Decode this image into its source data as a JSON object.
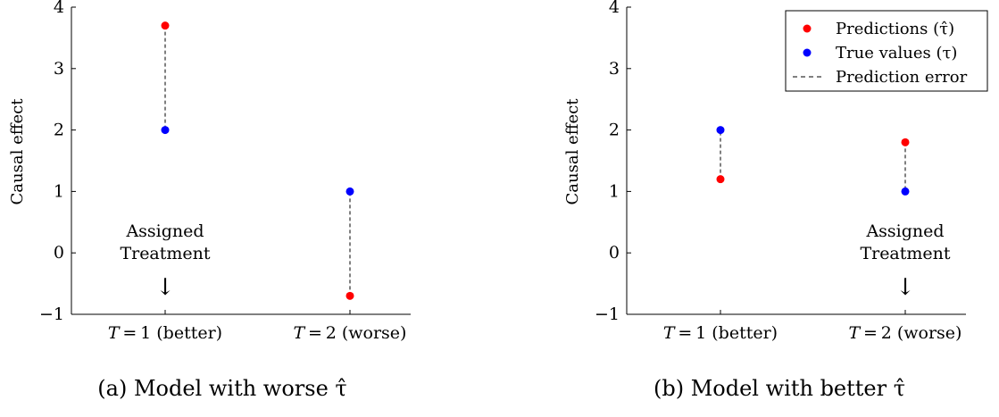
{
  "chart_data": [
    {
      "type": "scatter",
      "categories": [
        "T = 1 (better)",
        "T = 2 (worse)"
      ],
      "series": [
        {
          "name": "Predictions (τ̂)",
          "values": [
            3.7,
            -0.7
          ],
          "color": "#ff0000"
        },
        {
          "name": "True values (τ)",
          "values": [
            2,
            1
          ],
          "color": "#0000ff"
        }
      ],
      "error_series_name": "Prediction error",
      "ylabel": "Causal effect",
      "ylim": [
        -1,
        4
      ],
      "yticks": [
        -1,
        0,
        1,
        2,
        3,
        4
      ],
      "ytick_labels": [
        "−1",
        "0",
        "1",
        "2",
        "3",
        "4"
      ],
      "annotation": {
        "lines": [
          "Assigned",
          "Treatment"
        ],
        "arrow": "↓",
        "category": "T = 1 (better)"
      },
      "caption": "(a) Model with worse τ̂",
      "legend": false
    },
    {
      "type": "scatter",
      "categories": [
        "T = 1 (better)",
        "T = 2 (worse)"
      ],
      "series": [
        {
          "name": "Predictions (τ̂)",
          "values": [
            1.2,
            1.8
          ],
          "color": "#ff0000"
        },
        {
          "name": "True values (τ)",
          "values": [
            2,
            1
          ],
          "color": "#0000ff"
        }
      ],
      "error_series_name": "Prediction error",
      "ylabel": "Causal effect",
      "ylim": [
        -1,
        4
      ],
      "yticks": [
        -1,
        0,
        1,
        2,
        3,
        4
      ],
      "ytick_labels": [
        "−1",
        "0",
        "1",
        "2",
        "3",
        "4"
      ],
      "annotation": {
        "lines": [
          "Assigned",
          "Treatment"
        ],
        "arrow": "↓",
        "category": "T = 2 (worse)"
      },
      "caption": "(b) Model with better τ̂",
      "legend": true,
      "legend_position": "top-right"
    }
  ]
}
